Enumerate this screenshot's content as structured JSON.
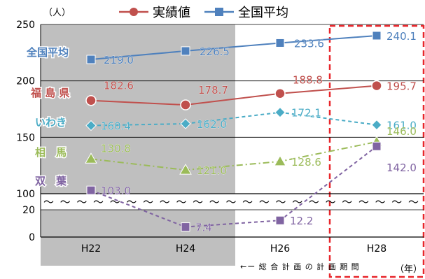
{
  "chart_data": {
    "type": "line",
    "y_unit_label": "（人）",
    "x_unit_label": "（年）",
    "period_note": "←ー 総 合 計 画 の 計 画 期 間",
    "x": [
      "H22",
      "H24",
      "H26",
      "H28"
    ],
    "legend": [
      {
        "name": "実績値",
        "color": "#c0504d",
        "marker": "circle"
      },
      {
        "name": "全国平均",
        "color": "#4f81bd",
        "marker": "square"
      }
    ],
    "y_ticks_upper": [
      250,
      200,
      150,
      100
    ],
    "y_ticks_lower": [
      20,
      0
    ],
    "axis_break": "〜〜〜〜〜〜〜〜〜〜〜〜〜〜〜〜〜〜〜〜〜〜〜",
    "ylim_upper": [
      100,
      250
    ],
    "ylim_lower": [
      0,
      20
    ],
    "shaded_x_range": [
      "H22",
      "H24"
    ],
    "highlight_x": "H28",
    "series": [
      {
        "name": "全国平均",
        "color": "#4f81bd",
        "marker": "square",
        "line": "solid",
        "values": [
          219.0,
          226.5,
          233.6,
          240.1
        ],
        "labels": [
          "219.0",
          "226.5",
          "233.6",
          "240.1"
        ]
      },
      {
        "name": "福 島 県",
        "color": "#c0504d",
        "marker": "circle",
        "line": "solid",
        "values": [
          182.6,
          178.7,
          188.8,
          195.7
        ],
        "labels": [
          "182.6",
          "178.7",
          "188.8",
          "195.7"
        ]
      },
      {
        "name": "いわき",
        "color": "#4bacc6",
        "marker": "diamond",
        "line": "dashed",
        "values": [
          160.4,
          162.0,
          172.1,
          161.0
        ],
        "labels": [
          "160.4",
          "162.0",
          "172.1",
          "161.0"
        ]
      },
      {
        "name": "相　馬",
        "color": "#9bbb59",
        "marker": "triangle",
        "line": "dashdot",
        "values": [
          130.8,
          121.0,
          128.6,
          146.0
        ],
        "labels": [
          "130.8",
          "121.0",
          "128.6",
          "146.0"
        ]
      },
      {
        "name": "双　葉",
        "color": "#8064a2",
        "marker": "square",
        "line": "dashed",
        "values": [
          103.0,
          7.4,
          12.2,
          142.0
        ],
        "labels": [
          "103.0",
          "7.4",
          "12.2",
          "142.0"
        ]
      }
    ]
  }
}
